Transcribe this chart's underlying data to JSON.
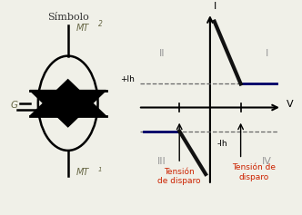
{
  "bg_color": "#f0f0e8",
  "title": "Símbolo",
  "title_color": "#333333",
  "mt2_text": "MT",
  "mt2_sub": "2",
  "mt1_text": "MT",
  "mt1_sub": "1",
  "g_text": "G",
  "label_color": "#666644",
  "circle_color": "black",
  "symbol_color": "black",
  "quadrant_II": "II",
  "quadrant_I": "I",
  "quadrant_III": "III",
  "quadrant_IV": "IV",
  "quadrant_color": "#999999",
  "axis_i": "I",
  "axis_v": "V",
  "axis_color": "black",
  "ih_pos": "+Ih",
  "ih_neg": "-Ih",
  "ih_color": "black",
  "dashed_color": "#666666",
  "curve_color": "#000066",
  "steep_color": "#111111",
  "tension_color": "#cc2200",
  "tension_left_1": "Tensión",
  "tension_left_2": "de disparo",
  "tension_right_1": "Tensión de",
  "tension_right_2": "disparo"
}
